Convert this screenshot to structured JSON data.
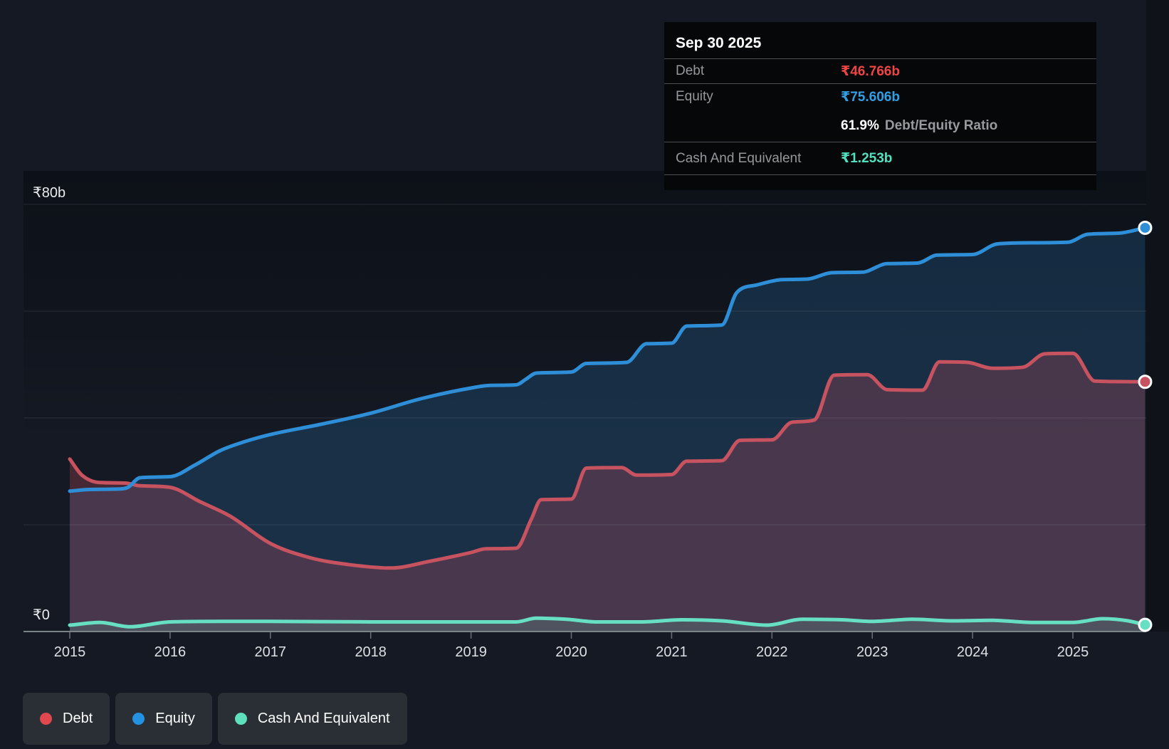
{
  "tooltip": {
    "date": "Sep 30 2025",
    "debt_label": "Debt",
    "debt_value": "₹46.766b",
    "equity_label": "Equity",
    "equity_value": "₹75.606b",
    "ratio_value": "61.9%",
    "ratio_label": "Debt/Equity Ratio",
    "cash_label": "Cash And Equivalent",
    "cash_value": "₹1.253b"
  },
  "legend": {
    "items": [
      {
        "label": "Debt",
        "color": "#e0474e"
      },
      {
        "label": "Equity",
        "color": "#2492e0"
      },
      {
        "label": "Cash And Equivalent",
        "color": "#5fe0bd"
      }
    ]
  },
  "colors": {
    "background": "#141923",
    "debt_value": "#ed4545",
    "equity_value": "#2f9fe6",
    "cash_value": "#50e2c0",
    "gridline": "rgba(255,255,255,0.10)",
    "axis_line": "#7b8289",
    "axis_label": "#e9ebed",
    "tick_label": "#dde0e4"
  },
  "chart_data": {
    "type": "area",
    "currency_unit": "₹ billions",
    "x_tick_labels": [
      "2015",
      "2016",
      "2017",
      "2018",
      "2019",
      "2020",
      "2021",
      "2022",
      "2023",
      "2024",
      "2025"
    ],
    "x_tick_years": [
      2015,
      2016,
      2017,
      2018,
      2019,
      2020,
      2021,
      2022,
      2023,
      2024,
      2025
    ],
    "y_ticks": [
      {
        "value": 80,
        "label": "₹80b"
      },
      {
        "value": 0,
        "label": "₹0"
      }
    ],
    "gridline_values": [
      80,
      60,
      40,
      20
    ],
    "ylim": [
      0,
      82.6
    ],
    "xlim": [
      2015,
      2025.75
    ],
    "series": [
      {
        "name": "Equity",
        "line_color": "#2e8fd8",
        "fill_color": "46,130,200",
        "fill_opacity": 0.22,
        "points": [
          [
            2015.0,
            26.3
          ],
          [
            2015.2,
            26.6
          ],
          [
            2015.5,
            26.7
          ],
          [
            2015.58,
            27.0
          ],
          [
            2015.7,
            28.8
          ],
          [
            2016.0,
            29.0
          ],
          [
            2016.25,
            31.2
          ],
          [
            2016.5,
            33.9
          ],
          [
            2016.75,
            35.6
          ],
          [
            2017.0,
            36.9
          ],
          [
            2017.5,
            38.8
          ],
          [
            2018.0,
            40.9
          ],
          [
            2018.5,
            43.6
          ],
          [
            2019.0,
            45.6
          ],
          [
            2019.2,
            46.1
          ],
          [
            2019.45,
            46.2
          ],
          [
            2019.55,
            47.3
          ],
          [
            2019.65,
            48.4
          ],
          [
            2020.0,
            48.6
          ],
          [
            2020.15,
            50.2
          ],
          [
            2020.55,
            50.4
          ],
          [
            2020.75,
            53.9
          ],
          [
            2021.0,
            54.0
          ],
          [
            2021.15,
            57.2
          ],
          [
            2021.5,
            57.4
          ],
          [
            2021.65,
            63.5
          ],
          [
            2021.85,
            64.9
          ],
          [
            2022.1,
            65.9
          ],
          [
            2022.35,
            66.0
          ],
          [
            2022.6,
            67.2
          ],
          [
            2022.9,
            67.3
          ],
          [
            2023.15,
            68.9
          ],
          [
            2023.45,
            69.0
          ],
          [
            2023.65,
            70.5
          ],
          [
            2024.0,
            70.6
          ],
          [
            2024.25,
            72.6
          ],
          [
            2024.6,
            72.8
          ],
          [
            2024.95,
            72.9
          ],
          [
            2025.15,
            74.4
          ],
          [
            2025.45,
            74.6
          ],
          [
            2025.72,
            75.606
          ]
        ]
      },
      {
        "name": "Debt",
        "line_color": "#c6535f",
        "fill_color": "198,80,95",
        "fill_opacity": 0.28,
        "points": [
          [
            2015.0,
            32.3
          ],
          [
            2015.12,
            29.3
          ],
          [
            2015.3,
            27.9
          ],
          [
            2015.55,
            27.8
          ],
          [
            2015.7,
            27.3
          ],
          [
            2016.0,
            27.0
          ],
          [
            2016.3,
            24.3
          ],
          [
            2016.6,
            21.6
          ],
          [
            2017.0,
            16.5
          ],
          [
            2017.4,
            13.8
          ],
          [
            2017.8,
            12.5
          ],
          [
            2018.2,
            11.9
          ],
          [
            2018.6,
            13.2
          ],
          [
            2019.0,
            14.8
          ],
          [
            2019.15,
            15.5
          ],
          [
            2019.45,
            15.6
          ],
          [
            2019.6,
            21.0
          ],
          [
            2019.7,
            24.7
          ],
          [
            2020.0,
            24.8
          ],
          [
            2020.15,
            30.6
          ],
          [
            2020.5,
            30.7
          ],
          [
            2020.65,
            29.3
          ],
          [
            2021.0,
            29.4
          ],
          [
            2021.15,
            31.9
          ],
          [
            2021.5,
            32.0
          ],
          [
            2021.68,
            35.8
          ],
          [
            2022.0,
            35.9
          ],
          [
            2022.2,
            39.2
          ],
          [
            2022.42,
            39.6
          ],
          [
            2022.62,
            48.0
          ],
          [
            2022.95,
            48.1
          ],
          [
            2023.15,
            45.3
          ],
          [
            2023.5,
            45.2
          ],
          [
            2023.67,
            50.5
          ],
          [
            2023.95,
            50.4
          ],
          [
            2024.2,
            49.3
          ],
          [
            2024.5,
            49.5
          ],
          [
            2024.72,
            52.0
          ],
          [
            2025.0,
            52.1
          ],
          [
            2025.22,
            46.9
          ],
          [
            2025.5,
            46.8
          ],
          [
            2025.72,
            46.766
          ]
        ]
      },
      {
        "name": "Cash And Equivalent",
        "line_color": "#67dfc3",
        "fill_color": "104,224,194",
        "fill_opacity": 0.16,
        "points": [
          [
            2015.0,
            1.2
          ],
          [
            2015.3,
            1.7
          ],
          [
            2015.6,
            0.9
          ],
          [
            2016.0,
            1.8
          ],
          [
            2016.5,
            1.9
          ],
          [
            2017.0,
            1.9
          ],
          [
            2017.5,
            1.85
          ],
          [
            2018.0,
            1.8
          ],
          [
            2018.5,
            1.8
          ],
          [
            2019.0,
            1.8
          ],
          [
            2019.45,
            1.8
          ],
          [
            2019.65,
            2.5
          ],
          [
            2019.95,
            2.3
          ],
          [
            2020.25,
            1.8
          ],
          [
            2020.7,
            1.8
          ],
          [
            2021.1,
            2.2
          ],
          [
            2021.5,
            2.0
          ],
          [
            2021.95,
            1.2
          ],
          [
            2022.3,
            2.3
          ],
          [
            2022.7,
            2.2
          ],
          [
            2023.0,
            1.9
          ],
          [
            2023.4,
            2.3
          ],
          [
            2023.8,
            2.0
          ],
          [
            2024.2,
            2.1
          ],
          [
            2024.6,
            1.7
          ],
          [
            2025.0,
            1.7
          ],
          [
            2025.3,
            2.4
          ],
          [
            2025.55,
            2.0
          ],
          [
            2025.72,
            1.253
          ]
        ]
      }
    ]
  }
}
